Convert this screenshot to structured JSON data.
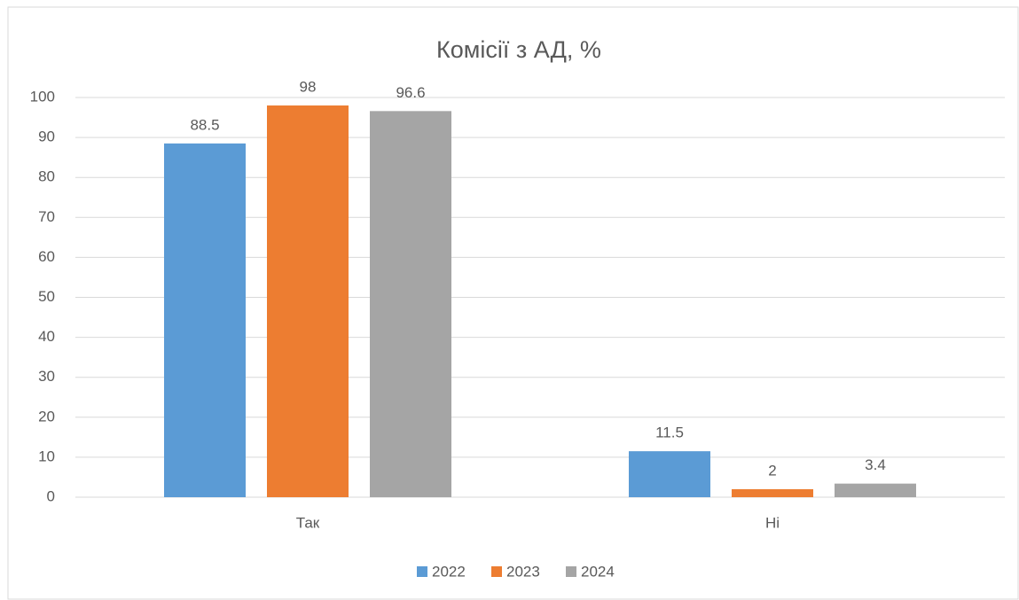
{
  "chart_data": {
    "type": "bar",
    "title": "Комісії з АД, %",
    "categories": [
      "Так",
      "Ні"
    ],
    "series": [
      {
        "name": "2022",
        "color": "#5b9bd5",
        "values": [
          88.5,
          11.5
        ]
      },
      {
        "name": "2023",
        "color": "#ed7d31",
        "values": [
          98,
          2
        ]
      },
      {
        "name": "2024",
        "color": "#a5a5a5",
        "values": [
          96.6,
          3.4
        ]
      }
    ],
    "ylim": [
      0,
      100
    ],
    "yticks": [
      0,
      10,
      20,
      30,
      40,
      50,
      60,
      70,
      80,
      90,
      100
    ],
    "grid": true,
    "legend": "bottom"
  }
}
